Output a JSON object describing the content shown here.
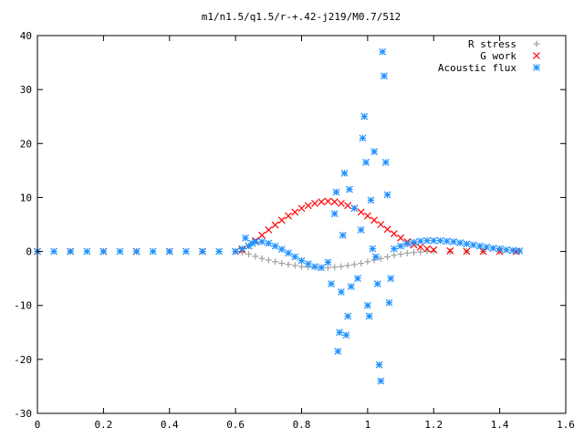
{
  "chart_data": {
    "type": "scatter",
    "title": "m1/n1.5/q1.5/r-+.42-j219/M0.7/512",
    "xlabel": "",
    "ylabel": "",
    "xlim": [
      0,
      1.6
    ],
    "ylim": [
      -30,
      40
    ],
    "x_ticks": [
      "0",
      "0.2",
      "0.4",
      "0.6",
      "0.8",
      "1",
      "1.2",
      "1.4",
      "1.6"
    ],
    "y_ticks": [
      "40",
      "30",
      "20",
      "10",
      "0",
      "-10",
      "-20",
      "-30"
    ],
    "grid": false,
    "legend_position": "top-right",
    "series": [
      {
        "name": "R stress",
        "marker": "plus",
        "color": "#a0a0a0",
        "points": [
          [
            0,
            0
          ],
          [
            0.1,
            0
          ],
          [
            0.2,
            0
          ],
          [
            0.3,
            0
          ],
          [
            0.4,
            0
          ],
          [
            0.5,
            0
          ],
          [
            0.6,
            0
          ],
          [
            0.62,
            -0.2
          ],
          [
            0.64,
            -0.5
          ],
          [
            0.66,
            -0.9
          ],
          [
            0.68,
            -1.3
          ],
          [
            0.7,
            -1.6
          ],
          [
            0.72,
            -1.9
          ],
          [
            0.74,
            -2.2
          ],
          [
            0.76,
            -2.4
          ],
          [
            0.78,
            -2.6
          ],
          [
            0.8,
            -2.8
          ],
          [
            0.82,
            -2.9
          ],
          [
            0.84,
            -3.0
          ],
          [
            0.86,
            -3.0
          ],
          [
            0.88,
            -3.0
          ],
          [
            0.9,
            -2.9
          ],
          [
            0.92,
            -2.8
          ],
          [
            0.94,
            -2.6
          ],
          [
            0.96,
            -2.4
          ],
          [
            0.98,
            -2.2
          ],
          [
            1.0,
            -1.9
          ],
          [
            1.02,
            -1.6
          ],
          [
            1.04,
            -1.3
          ],
          [
            1.06,
            -1.0
          ],
          [
            1.08,
            -0.7
          ],
          [
            1.1,
            -0.5
          ],
          [
            1.12,
            -0.3
          ],
          [
            1.14,
            -0.2
          ],
          [
            1.16,
            -0.1
          ],
          [
            1.18,
            0
          ],
          [
            1.2,
            0
          ],
          [
            1.25,
            0
          ],
          [
            1.3,
            0
          ],
          [
            1.35,
            0
          ],
          [
            1.4,
            0
          ],
          [
            1.45,
            0
          ]
        ]
      },
      {
        "name": "G work",
        "marker": "cross",
        "color": "#ff0000",
        "points": [
          [
            0,
            0
          ],
          [
            0.1,
            0
          ],
          [
            0.2,
            0
          ],
          [
            0.3,
            0
          ],
          [
            0.4,
            0
          ],
          [
            0.5,
            0
          ],
          [
            0.6,
            0
          ],
          [
            0.62,
            0.3
          ],
          [
            0.64,
            1.0
          ],
          [
            0.66,
            2.0
          ],
          [
            0.68,
            3.0
          ],
          [
            0.7,
            4.0
          ],
          [
            0.72,
            4.9
          ],
          [
            0.74,
            5.8
          ],
          [
            0.76,
            6.6
          ],
          [
            0.78,
            7.3
          ],
          [
            0.8,
            8.0
          ],
          [
            0.82,
            8.5
          ],
          [
            0.84,
            8.9
          ],
          [
            0.86,
            9.2
          ],
          [
            0.88,
            9.3
          ],
          [
            0.9,
            9.2
          ],
          [
            0.92,
            8.9
          ],
          [
            0.94,
            8.5
          ],
          [
            0.96,
            8.0
          ],
          [
            0.98,
            7.3
          ],
          [
            1.0,
            6.6
          ],
          [
            1.02,
            5.8
          ],
          [
            1.04,
            5.0
          ],
          [
            1.06,
            4.1
          ],
          [
            1.08,
            3.3
          ],
          [
            1.1,
            2.5
          ],
          [
            1.12,
            1.8
          ],
          [
            1.14,
            1.2
          ],
          [
            1.16,
            0.8
          ],
          [
            1.18,
            0.5
          ],
          [
            1.2,
            0.3
          ],
          [
            1.25,
            0.1
          ],
          [
            1.3,
            0
          ],
          [
            1.35,
            0
          ],
          [
            1.4,
            0
          ],
          [
            1.45,
            0
          ]
        ]
      },
      {
        "name": "Acoustic flux",
        "marker": "star",
        "color": "#1e90ff",
        "points": [
          [
            0,
            0
          ],
          [
            0.05,
            0
          ],
          [
            0.1,
            0
          ],
          [
            0.15,
            0
          ],
          [
            0.2,
            0
          ],
          [
            0.25,
            0
          ],
          [
            0.3,
            0
          ],
          [
            0.35,
            0
          ],
          [
            0.4,
            0
          ],
          [
            0.45,
            0
          ],
          [
            0.5,
            0
          ],
          [
            0.55,
            0
          ],
          [
            0.6,
            0
          ],
          [
            0.62,
            0.5
          ],
          [
            0.63,
            2.5
          ],
          [
            0.64,
            1.0
          ],
          [
            0.65,
            1.5
          ],
          [
            0.66,
            1.8
          ],
          [
            0.68,
            1.8
          ],
          [
            0.7,
            1.5
          ],
          [
            0.72,
            1.0
          ],
          [
            0.74,
            0.4
          ],
          [
            0.76,
            -0.3
          ],
          [
            0.78,
            -1.0
          ],
          [
            0.8,
            -1.7
          ],
          [
            0.82,
            -2.3
          ],
          [
            0.84,
            -2.8
          ],
          [
            0.86,
            -3.0
          ],
          [
            0.88,
            -2.0
          ],
          [
            0.89,
            -6.0
          ],
          [
            0.9,
            7.0
          ],
          [
            0.905,
            11.0
          ],
          [
            0.91,
            -18.5
          ],
          [
            0.915,
            -15.0
          ],
          [
            0.92,
            -7.5
          ],
          [
            0.925,
            3.0
          ],
          [
            0.93,
            14.5
          ],
          [
            0.935,
            -15.5
          ],
          [
            0.94,
            -12.0
          ],
          [
            0.945,
            11.5
          ],
          [
            0.95,
            -6.5
          ],
          [
            0.96,
            8.0
          ],
          [
            0.97,
            -5.0
          ],
          [
            0.98,
            4.0
          ],
          [
            0.985,
            21.0
          ],
          [
            0.99,
            25.0
          ],
          [
            0.995,
            16.5
          ],
          [
            1.0,
            -10.0
          ],
          [
            1.005,
            -12.0
          ],
          [
            1.01,
            9.5
          ],
          [
            1.015,
            0.5
          ],
          [
            1.02,
            18.5
          ],
          [
            1.025,
            -1.0
          ],
          [
            1.03,
            -6.0
          ],
          [
            1.035,
            -21.0
          ],
          [
            1.04,
            -24.0
          ],
          [
            1.045,
            37.0
          ],
          [
            1.05,
            32.5
          ],
          [
            1.055,
            16.5
          ],
          [
            1.06,
            10.5
          ],
          [
            1.065,
            -9.5
          ],
          [
            1.07,
            -5.0
          ],
          [
            1.08,
            0.5
          ],
          [
            1.1,
            1.0
          ],
          [
            1.12,
            1.4
          ],
          [
            1.14,
            1.7
          ],
          [
            1.16,
            1.9
          ],
          [
            1.18,
            2.0
          ],
          [
            1.2,
            2.0
          ],
          [
            1.22,
            2.0
          ],
          [
            1.24,
            1.9
          ],
          [
            1.26,
            1.8
          ],
          [
            1.28,
            1.6
          ],
          [
            1.3,
            1.4
          ],
          [
            1.32,
            1.2
          ],
          [
            1.34,
            1.0
          ],
          [
            1.36,
            0.8
          ],
          [
            1.38,
            0.6
          ],
          [
            1.4,
            0.5
          ],
          [
            1.42,
            0.3
          ],
          [
            1.44,
            0.2
          ],
          [
            1.46,
            0.1
          ]
        ]
      }
    ]
  }
}
